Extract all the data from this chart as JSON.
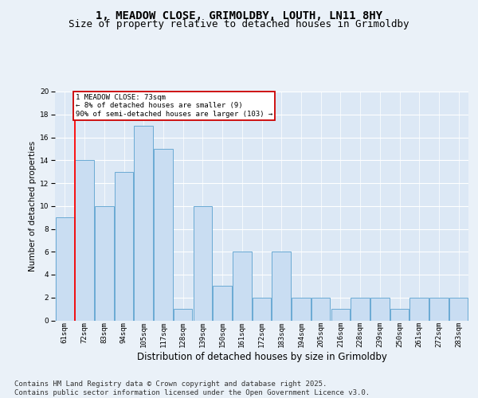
{
  "title1": "1, MEADOW CLOSE, GRIMOLDBY, LOUTH, LN11 8HY",
  "title2": "Size of property relative to detached houses in Grimoldby",
  "xlabel": "Distribution of detached houses by size in Grimoldby",
  "ylabel": "Number of detached properties",
  "categories": [
    "61sqm",
    "72sqm",
    "83sqm",
    "94sqm",
    "105sqm",
    "117sqm",
    "128sqm",
    "139sqm",
    "150sqm",
    "161sqm",
    "172sqm",
    "183sqm",
    "194sqm",
    "205sqm",
    "216sqm",
    "228sqm",
    "239sqm",
    "250sqm",
    "261sqm",
    "272sqm",
    "283sqm"
  ],
  "values": [
    9,
    14,
    10,
    13,
    17,
    15,
    1,
    10,
    3,
    6,
    2,
    6,
    2,
    2,
    1,
    2,
    2,
    1,
    2,
    2,
    2
  ],
  "bar_color": "#c9ddf2",
  "bar_edge_color": "#6aaad4",
  "red_line_index": 1,
  "annotation_text": "1 MEADOW CLOSE: 73sqm\n← 8% of detached houses are smaller (9)\n90% of semi-detached houses are larger (103) →",
  "annotation_box_color": "#ffffff",
  "annotation_box_edge": "#cc0000",
  "footer": "Contains HM Land Registry data © Crown copyright and database right 2025.\nContains public sector information licensed under the Open Government Licence v3.0.",
  "ylim": [
    0,
    20
  ],
  "yticks": [
    0,
    2,
    4,
    6,
    8,
    10,
    12,
    14,
    16,
    18,
    20
  ],
  "bg_color": "#eaf1f8",
  "plot_bg": "#dce8f5",
  "grid_color": "#ffffff",
  "title1_fontsize": 10,
  "title2_fontsize": 9,
  "xlabel_fontsize": 8.5,
  "ylabel_fontsize": 7.5,
  "tick_fontsize": 6.5,
  "annotation_fontsize": 6.5,
  "footer_fontsize": 6.5
}
